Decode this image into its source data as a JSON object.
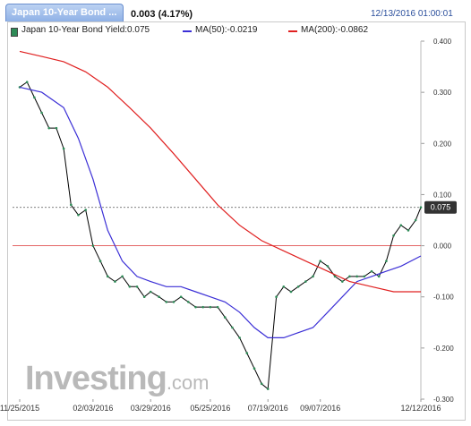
{
  "header": {
    "tab_title": "Japan 10-Year Bond ...",
    "change": "0.003 (4.17%)",
    "timestamp": "12/13/2016 01:00:01"
  },
  "legend": {
    "main": "Japan 10-Year Bond Yield:0.075",
    "ma50": "MA(50):-0.0219",
    "ma200": "MA(200):-0.0862"
  },
  "watermark": {
    "brand": "Investing",
    "suffix": ".com"
  },
  "colors": {
    "price": "#000000",
    "ma50": "#3b2fd6",
    "ma200": "#e02020",
    "zero_line": "#e05050",
    "last_badge": "#333333"
  },
  "chart_data": {
    "type": "line",
    "title": "Japan 10-Year Bond Yield",
    "x_tick_labels": [
      "11/25/2015",
      "02/03/2016",
      "03/29/2016",
      "05/25/2016",
      "07/19/2016",
      "09/07/2016",
      "12/12/2016"
    ],
    "y_tick_labels": [
      "0.400",
      "0.300",
      "0.200",
      "0.100",
      "0.000",
      "-0.100",
      "-0.200",
      "-0.300"
    ],
    "ylim": [
      -0.3,
      0.4
    ],
    "last_value_label": "0.075",
    "last_value": 0.075,
    "grid": false,
    "series": [
      {
        "name": "Japan 10-Year Bond Yield",
        "kind": "price",
        "x": [
          "11/25/2015",
          "12/02/2015",
          "12/09/2015",
          "12/16/2015",
          "12/23/2015",
          "12/30/2015",
          "01/06/2016",
          "01/13/2016",
          "01/20/2016",
          "01/27/2016",
          "02/03/2016",
          "02/10/2016",
          "02/17/2016",
          "02/24/2016",
          "03/02/2016",
          "03/09/2016",
          "03/16/2016",
          "03/23/2016",
          "03/29/2016",
          "04/06/2016",
          "04/13/2016",
          "04/20/2016",
          "04/27/2016",
          "05/04/2016",
          "05/11/2016",
          "05/18/2016",
          "05/25/2016",
          "06/01/2016",
          "06/08/2016",
          "06/15/2016",
          "06/22/2016",
          "06/29/2016",
          "07/06/2016",
          "07/13/2016",
          "07/19/2016",
          "07/27/2016",
          "08/03/2016",
          "08/10/2016",
          "08/17/2016",
          "08/24/2016",
          "08/31/2016",
          "09/07/2016",
          "09/14/2016",
          "09/21/2016",
          "09/28/2016",
          "10/05/2016",
          "10/12/2016",
          "10/19/2016",
          "10/26/2016",
          "11/02/2016",
          "11/09/2016",
          "11/16/2016",
          "11/23/2016",
          "11/30/2016",
          "12/07/2016",
          "12/12/2016"
        ],
        "values": [
          0.31,
          0.32,
          0.29,
          0.26,
          0.23,
          0.23,
          0.19,
          0.08,
          0.06,
          0.07,
          0.0,
          -0.03,
          -0.06,
          -0.07,
          -0.06,
          -0.08,
          -0.08,
          -0.1,
          -0.09,
          -0.1,
          -0.11,
          -0.11,
          -0.1,
          -0.11,
          -0.12,
          -0.12,
          -0.12,
          -0.12,
          -0.14,
          -0.16,
          -0.18,
          -0.21,
          -0.24,
          -0.27,
          -0.28,
          -0.1,
          -0.08,
          -0.09,
          -0.08,
          -0.07,
          -0.06,
          -0.03,
          -0.04,
          -0.06,
          -0.07,
          -0.06,
          -0.06,
          -0.06,
          -0.05,
          -0.06,
          -0.03,
          0.02,
          0.04,
          0.03,
          0.05,
          0.075
        ]
      },
      {
        "name": "MA(50)",
        "kind": "ma50",
        "x": [
          "11/25/2015",
          "12/16/2015",
          "01/06/2016",
          "01/20/2016",
          "02/03/2016",
          "02/17/2016",
          "03/02/2016",
          "03/16/2016",
          "03/29/2016",
          "04/13/2016",
          "04/27/2016",
          "05/11/2016",
          "05/25/2016",
          "06/08/2016",
          "06/22/2016",
          "07/06/2016",
          "07/19/2016",
          "08/03/2016",
          "08/17/2016",
          "08/31/2016",
          "09/14/2016",
          "09/28/2016",
          "10/12/2016",
          "10/26/2016",
          "11/09/2016",
          "11/23/2016",
          "12/12/2016"
        ],
        "values": [
          0.31,
          0.3,
          0.27,
          0.21,
          0.13,
          0.03,
          -0.03,
          -0.06,
          -0.07,
          -0.08,
          -0.08,
          -0.09,
          -0.1,
          -0.11,
          -0.13,
          -0.16,
          -0.18,
          -0.18,
          -0.17,
          -0.16,
          -0.13,
          -0.1,
          -0.07,
          -0.06,
          -0.05,
          -0.04,
          -0.02
        ]
      },
      {
        "name": "MA(200)",
        "kind": "ma200",
        "x": [
          "11/25/2015",
          "12/16/2015",
          "01/06/2016",
          "01/27/2016",
          "02/17/2016",
          "03/09/2016",
          "03/29/2016",
          "04/20/2016",
          "05/11/2016",
          "06/01/2016",
          "06/22/2016",
          "07/13/2016",
          "08/03/2016",
          "08/24/2016",
          "09/14/2016",
          "10/05/2016",
          "10/26/2016",
          "11/16/2016",
          "12/12/2016"
        ],
        "values": [
          0.38,
          0.37,
          0.36,
          0.34,
          0.31,
          0.27,
          0.23,
          0.18,
          0.13,
          0.08,
          0.04,
          0.01,
          -0.01,
          -0.03,
          -0.05,
          -0.07,
          -0.08,
          -0.09,
          -0.09
        ]
      }
    ]
  }
}
